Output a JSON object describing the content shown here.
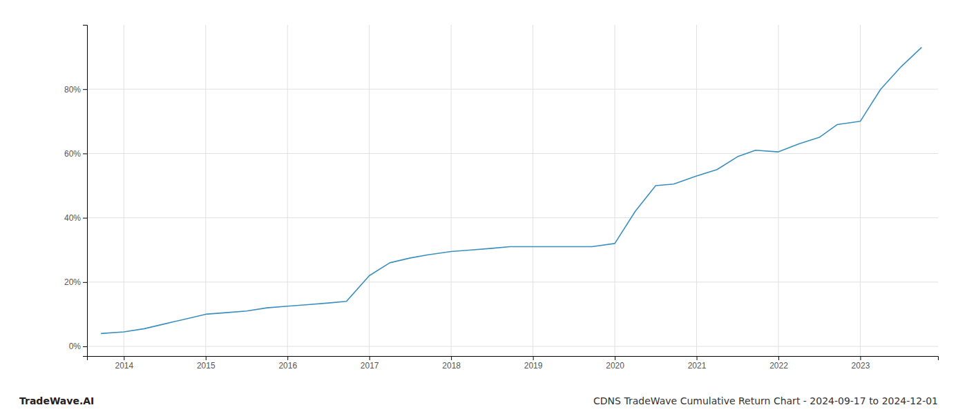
{
  "chart_data": {
    "type": "line",
    "title": "CDNS TradeWave Cumulative Return Chart - 2024-09-17 to 2024-12-01",
    "annotations": [
      "TradeWave.AI"
    ],
    "x": [
      2013.72,
      2014.0,
      2014.25,
      2014.5,
      2014.75,
      2015.0,
      2015.25,
      2015.5,
      2015.75,
      2016.0,
      2016.25,
      2016.5,
      2016.72,
      2017.0,
      2017.25,
      2017.5,
      2017.72,
      2018.0,
      2018.25,
      2018.5,
      2018.72,
      2019.0,
      2019.25,
      2019.5,
      2019.72,
      2020.0,
      2020.25,
      2020.5,
      2020.72,
      2021.0,
      2021.25,
      2021.5,
      2021.72,
      2022.0,
      2022.25,
      2022.5,
      2022.72,
      2023.0,
      2023.25,
      2023.5,
      2023.75
    ],
    "values": [
      4.0,
      4.5,
      5.5,
      7.0,
      8.5,
      10.0,
      10.5,
      11.0,
      12.0,
      12.5,
      13.0,
      13.5,
      14.0,
      22.0,
      26.0,
      27.5,
      28.5,
      29.5,
      30.0,
      30.5,
      31.0,
      31.0,
      31.0,
      31.0,
      31.0,
      32.0,
      42.0,
      50.0,
      50.5,
      53.0,
      55.0,
      59.0,
      61.0,
      60.5,
      63.0,
      65.0,
      69.0,
      70.0,
      80.0,
      87.0,
      93.0
    ],
    "color": "#3a8fbf",
    "xlim": [
      2013.55,
      2023.95
    ],
    "xticks": [
      2014,
      2015,
      2016,
      2017,
      2018,
      2019,
      2020,
      2021,
      2022,
      2023
    ],
    "ylim": [
      -3,
      100
    ],
    "yticks": [
      {
        "value": 0,
        "label": "0%"
      },
      {
        "value": 20,
        "label": "20%"
      },
      {
        "value": 40,
        "label": "40%"
      },
      {
        "value": 60,
        "label": "60%"
      },
      {
        "value": 80,
        "label": "80%"
      }
    ],
    "grid": true
  }
}
